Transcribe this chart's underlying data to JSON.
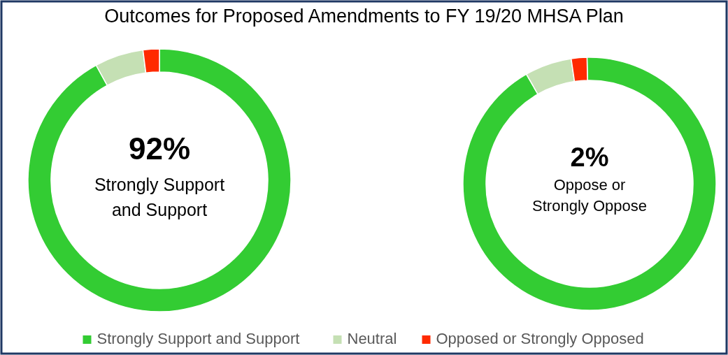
{
  "chart_data": [
    {
      "type": "donut",
      "title": "Outcomes for Proposed Amendments to FY 19/20 MHSA Plan",
      "categories": [
        "Strongly Support and Support",
        "Neutral",
        "Opposed or Strongly Opposed"
      ],
      "values": [
        92,
        6,
        2
      ],
      "colors": [
        "#33cc33",
        "#c5e0b4",
        "#ff2a00"
      ],
      "legend": "bottom",
      "annotations": [
        "92%",
        "Strongly Support",
        "and Support"
      ]
    },
    {
      "type": "donut",
      "values": [
        92,
        6,
        2
      ],
      "colors": [
        "#33cc33",
        "#c5e0b4",
        "#ff2a00"
      ],
      "annotations": [
        "2%",
        "Oppose or",
        "Strongly Oppose"
      ]
    }
  ]
}
